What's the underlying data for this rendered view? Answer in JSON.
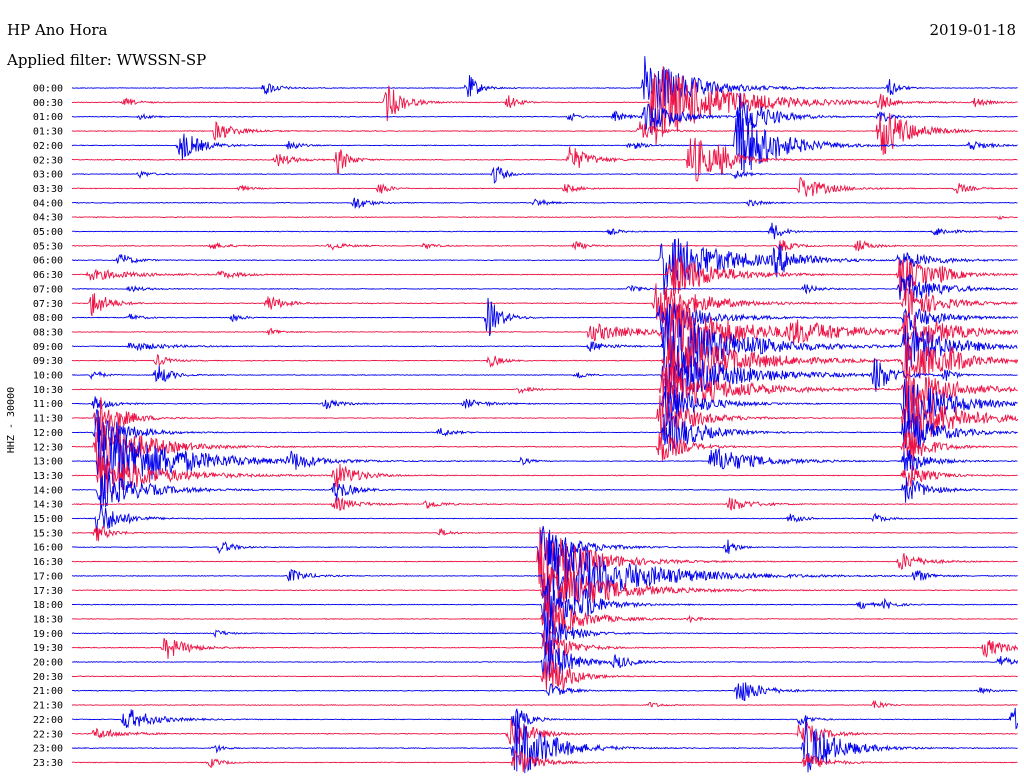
{
  "header": {
    "title": "HP Ano Hora",
    "date": "2019-01-18",
    "filter": "Applied filter: WWSSN-SP"
  },
  "chart_data": {
    "type": "line",
    "title": "HP Ano Hora",
    "ylabel": "HHZ - 30000",
    "trace_colors": [
      "#0000ee",
      "#ee1144"
    ],
    "rows": [
      {
        "label": "00:00",
        "events": [
          [
            265,
            1.5,
            12
          ],
          [
            468,
            3,
            10
          ],
          [
            645,
            7,
            40
          ],
          [
            890,
            2,
            8
          ]
        ]
      },
      {
        "label": "00:30",
        "events": [
          [
            125,
            0.8,
            12
          ],
          [
            387,
            4,
            15
          ],
          [
            508,
            1.5,
            10
          ],
          [
            653,
            9,
            60
          ],
          [
            880,
            2,
            8
          ],
          [
            975,
            1,
            10
          ]
        ]
      },
      {
        "label": "01:00",
        "events": [
          [
            140,
            0.6,
            10
          ],
          [
            570,
            1,
            8
          ],
          [
            615,
            1.2,
            10
          ],
          [
            645,
            4,
            25
          ],
          [
            740,
            5,
            25
          ],
          [
            880,
            1.5,
            10
          ]
        ]
      },
      {
        "label": "01:30",
        "events": [
          [
            215,
            2,
            20
          ],
          [
            640,
            2,
            15
          ],
          [
            880,
            6,
            25
          ]
        ]
      },
      {
        "label": "02:00",
        "events": [
          [
            180,
            3.5,
            18
          ],
          [
            290,
            1.5,
            8
          ],
          [
            630,
            1,
            12
          ],
          [
            737,
            8,
            35
          ],
          [
            970,
            1.2,
            15
          ]
        ]
      },
      {
        "label": "02:30",
        "events": [
          [
            277,
            1.5,
            15
          ],
          [
            338,
            3,
            10
          ],
          [
            570,
            3,
            18
          ],
          [
            690,
            6,
            25
          ],
          [
            720,
            2,
            10
          ]
        ]
      },
      {
        "label": "03:00",
        "events": [
          [
            140,
            0.7,
            10
          ],
          [
            495,
            2.5,
            8
          ],
          [
            735,
            1,
            10
          ]
        ]
      },
      {
        "label": "03:30",
        "events": [
          [
            240,
            0.6,
            10
          ],
          [
            380,
            1.5,
            8
          ],
          [
            565,
            1,
            12
          ],
          [
            800,
            2.5,
            25
          ],
          [
            957,
            1.2,
            12
          ]
        ]
      },
      {
        "label": "04:00",
        "events": [
          [
            355,
            1.5,
            12
          ],
          [
            535,
            0.8,
            12
          ],
          [
            750,
            0.8,
            10
          ]
        ]
      },
      {
        "label": "04:30",
        "events": [
          [
            1000,
            0.5,
            5
          ]
        ]
      },
      {
        "label": "05:00",
        "events": [
          [
            610,
            0.7,
            10
          ],
          [
            772,
            2,
            10
          ],
          [
            935,
            1,
            15
          ]
        ]
      },
      {
        "label": "05:30",
        "events": [
          [
            210,
            0.8,
            15
          ],
          [
            330,
            0.8,
            15
          ],
          [
            425,
            0.7,
            10
          ],
          [
            575,
            1,
            10
          ],
          [
            780,
            1.5,
            12
          ],
          [
            857,
            1.5,
            12
          ]
        ]
      },
      {
        "label": "06:00",
        "events": [
          [
            120,
            1.5,
            12
          ],
          [
            663,
            7,
            50
          ],
          [
            775,
            3,
            20
          ],
          [
            900,
            2,
            30
          ]
        ]
      },
      {
        "label": "06:30",
        "events": [
          [
            90,
            1.2,
            40
          ],
          [
            220,
            0.8,
            20
          ],
          [
            670,
            5,
            40
          ],
          [
            900,
            4,
            30
          ],
          [
            940,
            1,
            10
          ]
        ]
      },
      {
        "label": "07:00",
        "events": [
          [
            130,
            0.6,
            15
          ],
          [
            630,
            1,
            10
          ],
          [
            805,
            1,
            12
          ],
          [
            900,
            4,
            30
          ]
        ]
      },
      {
        "label": "07:30",
        "events": [
          [
            92,
            3,
            15
          ],
          [
            268,
            1.8,
            15
          ],
          [
            655,
            5,
            40
          ],
          [
            905,
            4,
            30
          ]
        ]
      },
      {
        "label": "08:00",
        "events": [
          [
            130,
            0.8,
            10
          ],
          [
            233,
            0.8,
            10
          ],
          [
            488,
            4.5,
            12
          ],
          [
            660,
            4,
            40
          ],
          [
            905,
            3,
            30
          ]
        ]
      },
      {
        "label": "08:30",
        "events": [
          [
            270,
            0.8,
            10
          ],
          [
            590,
            2,
            40
          ],
          [
            663,
            7,
            60
          ],
          [
            790,
            2,
            60
          ],
          [
            905,
            4,
            40
          ]
        ]
      },
      {
        "label": "09:00",
        "events": [
          [
            130,
            1,
            30
          ],
          [
            590,
            1,
            20
          ],
          [
            665,
            8,
            60
          ],
          [
            905,
            5,
            40
          ]
        ]
      },
      {
        "label": "09:30",
        "events": [
          [
            157,
            1.2,
            12
          ],
          [
            490,
            1.5,
            10
          ],
          [
            665,
            7,
            60
          ],
          [
            905,
            5,
            40
          ],
          [
            950,
            1.5,
            10
          ]
        ]
      },
      {
        "label": "10:00",
        "events": [
          [
            93,
            1.2,
            8
          ],
          [
            157,
            2.5,
            12
          ],
          [
            577,
            1,
            8
          ],
          [
            665,
            6,
            60
          ],
          [
            875,
            4,
            15
          ],
          [
            945,
            1.5,
            8
          ]
        ]
      },
      {
        "label": "10:30",
        "events": [
          [
            520,
            0.8,
            12
          ],
          [
            663,
            5,
            60
          ],
          [
            905,
            5,
            40
          ]
        ]
      },
      {
        "label": "11:00",
        "events": [
          [
            95,
            1.5,
            15
          ],
          [
            325,
            1,
            15
          ],
          [
            465,
            1,
            20
          ],
          [
            665,
            5,
            30
          ],
          [
            905,
            6,
            40
          ]
        ]
      },
      {
        "label": "11:30",
        "events": [
          [
            97,
            6,
            20
          ],
          [
            660,
            5,
            30
          ],
          [
            905,
            8,
            40
          ]
        ]
      },
      {
        "label": "12:00",
        "events": [
          [
            97,
            5,
            25
          ],
          [
            440,
            1,
            12
          ],
          [
            665,
            5,
            30
          ],
          [
            905,
            5,
            30
          ]
        ]
      },
      {
        "label": "12:30",
        "events": [
          [
            97,
            7,
            40
          ],
          [
            660,
            4,
            20
          ],
          [
            905,
            5,
            20
          ]
        ]
      },
      {
        "label": "13:00",
        "events": [
          [
            100,
            9,
            60
          ],
          [
            290,
            2,
            20
          ],
          [
            520,
            1,
            8
          ],
          [
            712,
            3,
            40
          ],
          [
            905,
            3,
            20
          ]
        ]
      },
      {
        "label": "13:30",
        "events": [
          [
            100,
            5,
            50
          ],
          [
            335,
            3,
            20
          ],
          [
            905,
            3,
            20
          ]
        ]
      },
      {
        "label": "14:00",
        "events": [
          [
            100,
            4,
            40
          ],
          [
            335,
            2.5,
            15
          ],
          [
            905,
            3,
            20
          ]
        ]
      },
      {
        "label": "14:30",
        "events": [
          [
            335,
            1.5,
            20
          ],
          [
            425,
            1,
            15
          ],
          [
            730,
            1.5,
            20
          ]
        ]
      },
      {
        "label": "15:00",
        "events": [
          [
            97,
            4,
            20
          ],
          [
            790,
            1,
            12
          ],
          [
            875,
            1,
            10
          ]
        ]
      },
      {
        "label": "15:30",
        "events": [
          [
            97,
            2,
            12
          ],
          [
            440,
            0.8,
            10
          ]
        ]
      },
      {
        "label": "16:00",
        "events": [
          [
            220,
            1.5,
            12
          ],
          [
            540,
            5,
            30
          ],
          [
            727,
            2,
            8
          ]
        ]
      },
      {
        "label": "16:30",
        "events": [
          [
            540,
            8,
            40
          ],
          [
            900,
            2,
            20
          ]
        ]
      },
      {
        "label": "17:00",
        "events": [
          [
            290,
            1.5,
            15
          ],
          [
            545,
            9,
            70
          ],
          [
            915,
            1.5,
            12
          ]
        ]
      },
      {
        "label": "17:30",
        "events": [
          [
            545,
            7,
            50
          ]
        ]
      },
      {
        "label": "18:00",
        "events": [
          [
            545,
            6,
            30
          ],
          [
            585,
            2.5,
            8
          ],
          [
            860,
            1,
            10
          ],
          [
            885,
            1,
            10
          ]
        ]
      },
      {
        "label": "18:30",
        "events": [
          [
            545,
            5,
            30
          ],
          [
            690,
            0.6,
            10
          ]
        ]
      },
      {
        "label": "19:00",
        "events": [
          [
            215,
            0.8,
            10
          ],
          [
            545,
            5,
            20
          ]
        ]
      },
      {
        "label": "19:30",
        "events": [
          [
            165,
            2.5,
            20
          ],
          [
            545,
            5,
            20
          ],
          [
            985,
            2,
            20
          ]
        ]
      },
      {
        "label": "20:00",
        "events": [
          [
            615,
            1.5,
            15
          ],
          [
            545,
            6,
            20
          ],
          [
            1000,
            1.5,
            10
          ]
        ]
      },
      {
        "label": "20:30",
        "events": [
          [
            545,
            5,
            20
          ],
          [
            560,
            1,
            10
          ]
        ]
      },
      {
        "label": "21:00",
        "events": [
          [
            550,
            1.5,
            15
          ],
          [
            738,
            3,
            20
          ],
          [
            980,
            0.6,
            10
          ]
        ]
      },
      {
        "label": "21:30",
        "events": [
          [
            875,
            1.2,
            8
          ],
          [
            650,
            0.6,
            10
          ]
        ]
      },
      {
        "label": "22:00",
        "events": [
          [
            125,
            2.5,
            25
          ],
          [
            515,
            3,
            12
          ],
          [
            800,
            1.5,
            10
          ],
          [
            1013,
            3,
            8
          ]
        ]
      },
      {
        "label": "22:30",
        "events": [
          [
            95,
            1.2,
            25
          ],
          [
            510,
            4,
            20
          ],
          [
            800,
            3,
            20
          ]
        ]
      },
      {
        "label": "23:00",
        "events": [
          [
            215,
            1,
            8
          ],
          [
            515,
            8,
            30
          ],
          [
            805,
            6,
            30
          ]
        ]
      },
      {
        "label": "23:30",
        "events": [
          [
            210,
            1,
            12
          ],
          [
            515,
            3,
            20
          ],
          [
            805,
            2,
            20
          ]
        ]
      }
    ]
  }
}
